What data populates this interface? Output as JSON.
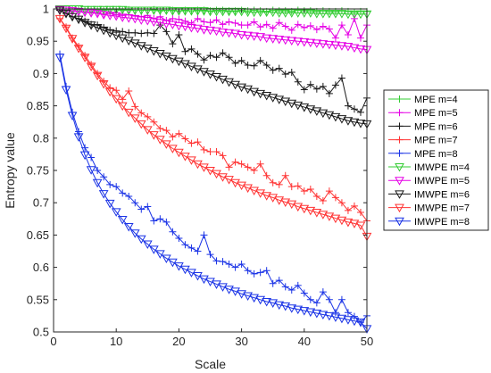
{
  "chart_data": {
    "type": "line",
    "xlabel": "Scale",
    "ylabel": "Entropy value",
    "xlim": [
      0,
      50
    ],
    "ylim": [
      0.5,
      1
    ],
    "x_ticks": [
      0,
      10,
      20,
      30,
      40,
      50
    ],
    "y_ticks": [
      0.5,
      0.55,
      0.6,
      0.65,
      0.7,
      0.75,
      0.8,
      0.85,
      0.9,
      0.95,
      1
    ],
    "y_tick_labels": [
      "0.5",
      "0.55",
      "0.6",
      "0.65",
      "0.7",
      "0.75",
      "0.8",
      "0.85",
      "0.9",
      "0.95",
      "1"
    ],
    "grid": false,
    "legend_position": "right",
    "x": [
      1,
      2,
      3,
      4,
      5,
      6,
      7,
      8,
      9,
      10,
      11,
      12,
      13,
      14,
      15,
      16,
      17,
      18,
      19,
      20,
      21,
      22,
      23,
      24,
      25,
      26,
      27,
      28,
      29,
      30,
      31,
      32,
      33,
      34,
      35,
      36,
      37,
      38,
      39,
      40,
      41,
      42,
      43,
      44,
      45,
      46,
      47,
      48,
      49,
      50
    ],
    "series": [
      {
        "name": "MPE m=4",
        "color": "#33cc33",
        "marker": "plus",
        "values": [
          1,
          1,
          1,
          0.999,
          0.999,
          0.999,
          0.999,
          0.998,
          0.999,
          0.999,
          0.998,
          0.999,
          0.998,
          0.998,
          0.998,
          0.999,
          0.997,
          0.998,
          0.998,
          0.997,
          0.998,
          0.997,
          0.998,
          0.998,
          0.997,
          0.998,
          0.998,
          0.997,
          0.997,
          0.998,
          0.997,
          0.998,
          0.997,
          0.996,
          0.998,
          0.997,
          0.997,
          0.996,
          0.998,
          0.997,
          0.997,
          0.996,
          0.997,
          0.996,
          0.996,
          0.997,
          0.996,
          0.995,
          0.996,
          0.996
        ]
      },
      {
        "name": "MPE m=5",
        "color": "#e600e6",
        "marker": "plus",
        "values": [
          0.999,
          0.998,
          0.997,
          0.996,
          0.995,
          0.995,
          0.994,
          0.992,
          0.993,
          0.991,
          0.99,
          0.991,
          0.989,
          0.988,
          0.99,
          0.985,
          0.988,
          0.982,
          0.985,
          0.984,
          0.981,
          0.978,
          0.985,
          0.98,
          0.979,
          0.983,
          0.976,
          0.98,
          0.978,
          0.975,
          0.975,
          0.98,
          0.972,
          0.976,
          0.97,
          0.979,
          0.973,
          0.967,
          0.976,
          0.971,
          0.974,
          0.968,
          0.973,
          0.969,
          0.955,
          0.975,
          0.96,
          0.985,
          0.955,
          0.975
        ]
      },
      {
        "name": "MPE m=6",
        "color": "#1a1a1a",
        "marker": "plus",
        "values": [
          0.998,
          0.993,
          0.988,
          0.985,
          0.981,
          0.976,
          0.975,
          0.971,
          0.967,
          0.966,
          0.965,
          0.963,
          0.963,
          0.962,
          0.963,
          0.962,
          0.975,
          0.965,
          0.946,
          0.96,
          0.934,
          0.938,
          0.93,
          0.921,
          0.928,
          0.925,
          0.932,
          0.925,
          0.916,
          0.92,
          0.913,
          0.912,
          0.92,
          0.913,
          0.905,
          0.908,
          0.899,
          0.902,
          0.887,
          0.875,
          0.883,
          0.876,
          0.88,
          0.869,
          0.882,
          0.893,
          0.85,
          0.845,
          0.84,
          0.862
        ]
      },
      {
        "name": "MPE m=7",
        "color": "#ff3333",
        "marker": "plus",
        "values": [
          0.985,
          0.972,
          0.955,
          0.942,
          0.928,
          0.914,
          0.9,
          0.888,
          0.878,
          0.874,
          0.86,
          0.873,
          0.849,
          0.839,
          0.833,
          0.825,
          0.815,
          0.812,
          0.802,
          0.807,
          0.799,
          0.792,
          0.794,
          0.782,
          0.779,
          0.779,
          0.773,
          0.755,
          0.763,
          0.76,
          0.755,
          0.75,
          0.76,
          0.742,
          0.731,
          0.728,
          0.742,
          0.725,
          0.726,
          0.718,
          0.721,
          0.71,
          0.703,
          0.718,
          0.708,
          0.7,
          0.688,
          0.695,
          0.685,
          0.672
        ]
      },
      {
        "name": "MPE m=8",
        "color": "#1a33e6",
        "marker": "plus",
        "values": [
          0.93,
          0.88,
          0.84,
          0.81,
          0.785,
          0.77,
          0.75,
          0.74,
          0.728,
          0.725,
          0.715,
          0.71,
          0.7,
          0.69,
          0.694,
          0.672,
          0.675,
          0.67,
          0.655,
          0.645,
          0.635,
          0.63,
          0.625,
          0.65,
          0.62,
          0.61,
          0.609,
          0.605,
          0.6,
          0.605,
          0.595,
          0.59,
          0.592,
          0.595,
          0.575,
          0.58,
          0.57,
          0.565,
          0.572,
          0.56,
          0.55,
          0.545,
          0.562,
          0.55,
          0.53,
          0.55,
          0.53,
          0.524,
          0.515,
          0.525
        ]
      },
      {
        "name": "IMWPE m=4",
        "color": "#33cc33",
        "marker": "triangle",
        "values": [
          1,
          1,
          1,
          1,
          0.999,
          0.999,
          0.999,
          0.999,
          0.999,
          0.999,
          0.999,
          0.998,
          0.998,
          0.998,
          0.998,
          0.998,
          0.998,
          0.998,
          0.997,
          0.997,
          0.997,
          0.997,
          0.997,
          0.997,
          0.996,
          0.996,
          0.996,
          0.996,
          0.996,
          0.996,
          0.995,
          0.995,
          0.995,
          0.995,
          0.995,
          0.994,
          0.994,
          0.994,
          0.994,
          0.994,
          0.994,
          0.993,
          0.993,
          0.993,
          0.993,
          0.993,
          0.992,
          0.992,
          0.992,
          0.992
        ]
      },
      {
        "name": "IMWPE m=5",
        "color": "#e600e6",
        "marker": "triangle",
        "values": [
          0.999,
          0.998,
          0.997,
          0.996,
          0.995,
          0.994,
          0.993,
          0.991,
          0.99,
          0.989,
          0.987,
          0.986,
          0.985,
          0.983,
          0.982,
          0.98,
          0.979,
          0.977,
          0.976,
          0.974,
          0.973,
          0.971,
          0.97,
          0.968,
          0.967,
          0.966,
          0.964,
          0.963,
          0.962,
          0.96,
          0.959,
          0.958,
          0.957,
          0.955,
          0.954,
          0.953,
          0.952,
          0.951,
          0.95,
          0.949,
          0.948,
          0.947,
          0.946,
          0.945,
          0.944,
          0.943,
          0.942,
          0.94,
          0.938,
          0.937
        ]
      },
      {
        "name": "IMWPE m=6",
        "color": "#1a1a1a",
        "marker": "triangle",
        "values": [
          0.998,
          0.993,
          0.988,
          0.984,
          0.979,
          0.975,
          0.971,
          0.967,
          0.963,
          0.959,
          0.955,
          0.951,
          0.947,
          0.943,
          0.939,
          0.935,
          0.931,
          0.927,
          0.923,
          0.919,
          0.915,
          0.911,
          0.907,
          0.903,
          0.899,
          0.895,
          0.891,
          0.887,
          0.883,
          0.879,
          0.876,
          0.872,
          0.869,
          0.866,
          0.863,
          0.86,
          0.857,
          0.854,
          0.851,
          0.848,
          0.845,
          0.842,
          0.839,
          0.836,
          0.833,
          0.83,
          0.827,
          0.825,
          0.823,
          0.822
        ]
      },
      {
        "name": "IMWPE m=7",
        "color": "#ff3333",
        "marker": "triangle",
        "values": [
          0.985,
          0.97,
          0.954,
          0.939,
          0.925,
          0.911,
          0.897,
          0.884,
          0.872,
          0.861,
          0.85,
          0.84,
          0.831,
          0.822,
          0.813,
          0.805,
          0.798,
          0.791,
          0.784,
          0.778,
          0.772,
          0.766,
          0.76,
          0.755,
          0.75,
          0.745,
          0.74,
          0.736,
          0.731,
          0.727,
          0.723,
          0.719,
          0.715,
          0.711,
          0.708,
          0.704,
          0.701,
          0.698,
          0.694,
          0.691,
          0.688,
          0.685,
          0.682,
          0.679,
          0.676,
          0.673,
          0.67,
          0.668,
          0.665,
          0.648
        ]
      },
      {
        "name": "IMWPE m=8",
        "color": "#1a33e6",
        "marker": "triangle",
        "values": [
          0.925,
          0.875,
          0.835,
          0.802,
          0.774,
          0.751,
          0.731,
          0.714,
          0.699,
          0.686,
          0.674,
          0.663,
          0.653,
          0.644,
          0.636,
          0.628,
          0.621,
          0.614,
          0.608,
          0.602,
          0.597,
          0.592,
          0.587,
          0.582,
          0.578,
          0.574,
          0.57,
          0.566,
          0.563,
          0.559,
          0.556,
          0.553,
          0.55,
          0.547,
          0.545,
          0.542,
          0.54,
          0.537,
          0.535,
          0.533,
          0.531,
          0.529,
          0.527,
          0.525,
          0.523,
          0.521,
          0.519,
          0.517,
          0.515,
          0.505
        ]
      }
    ]
  }
}
